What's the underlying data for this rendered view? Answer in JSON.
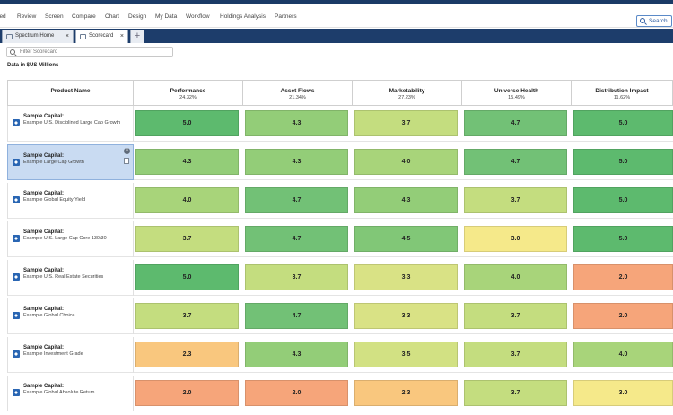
{
  "menu": {
    "items": [
      "ied",
      "Review",
      "Screen",
      "Compare",
      "Chart",
      "Design",
      "My Data",
      "Workflow",
      "Holdings Analysis",
      "Partners"
    ],
    "search_label": "Search"
  },
  "tabs": [
    {
      "label": "Spectrum Home",
      "close": "×"
    },
    {
      "label": "Scorecard",
      "close": "×"
    }
  ],
  "tab_add": "+",
  "filter": {
    "placeholder": "Filter Scorecard"
  },
  "caption": "Data in $US Millions",
  "columns": [
    {
      "name": "Product Name",
      "weight": ""
    },
    {
      "name": "Performance",
      "weight": "24.32%"
    },
    {
      "name": "Asset Flows",
      "weight": "21.34%"
    },
    {
      "name": "Marketability",
      "weight": "27.23%"
    },
    {
      "name": "Universe Health",
      "weight": "15.49%"
    },
    {
      "name": "Distribution Impact",
      "weight": "11.62%"
    }
  ],
  "row_actions": {
    "remove": "×"
  },
  "selected_row": 1,
  "colors": {
    "score_5_0": "#5dba6e",
    "score_4_7": "#72c176",
    "score_4_5": "#81c777",
    "score_4_3": "#93cd78",
    "score_4_0": "#a8d47a",
    "score_3_7": "#c4dd7f",
    "score_3_5": "#d2e183",
    "score_3_3": "#d9e285",
    "score_3_0": "#f5e98a",
    "score_2_3": "#f9c77e",
    "score_2_0": "#f6a57a",
    "selection": "#c9dbf2"
  },
  "rows": [
    {
      "company": "Sample Capital:",
      "fund": "Example U.S. Disciplined Large Cap Growth",
      "scores": [
        "5.0",
        "4.3",
        "3.7",
        "4.7",
        "5.0"
      ]
    },
    {
      "company": "Sample Capital:",
      "fund": "Example Large Cap Growth",
      "scores": [
        "4.3",
        "4.3",
        "4.0",
        "4.7",
        "5.0"
      ]
    },
    {
      "company": "Sample Capital:",
      "fund": "Example Global Equity Yield",
      "scores": [
        "4.0",
        "4.7",
        "4.3",
        "3.7",
        "5.0"
      ]
    },
    {
      "company": "Sample Capital:",
      "fund": "Example U.S. Large Cap Core 130/30",
      "scores": [
        "3.7",
        "4.7",
        "4.5",
        "3.0",
        "5.0"
      ]
    },
    {
      "company": "Sample Capital:",
      "fund": "Example U.S. Real Estate Securities",
      "scores": [
        "5.0",
        "3.7",
        "3.3",
        "4.0",
        "2.0"
      ]
    },
    {
      "company": "Sample Capital:",
      "fund": "Example Global Choice",
      "scores": [
        "3.7",
        "4.7",
        "3.3",
        "3.7",
        "2.0"
      ]
    },
    {
      "company": "Sample Capital:",
      "fund": "Example Investment Grade",
      "scores": [
        "2.3",
        "4.3",
        "3.5",
        "3.7",
        "4.0"
      ]
    },
    {
      "company": "Sample Capital:",
      "fund": "Example Global Absolute Return",
      "scores": [
        "2.0",
        "2.0",
        "2.3",
        "3.7",
        "3.0"
      ]
    }
  ]
}
